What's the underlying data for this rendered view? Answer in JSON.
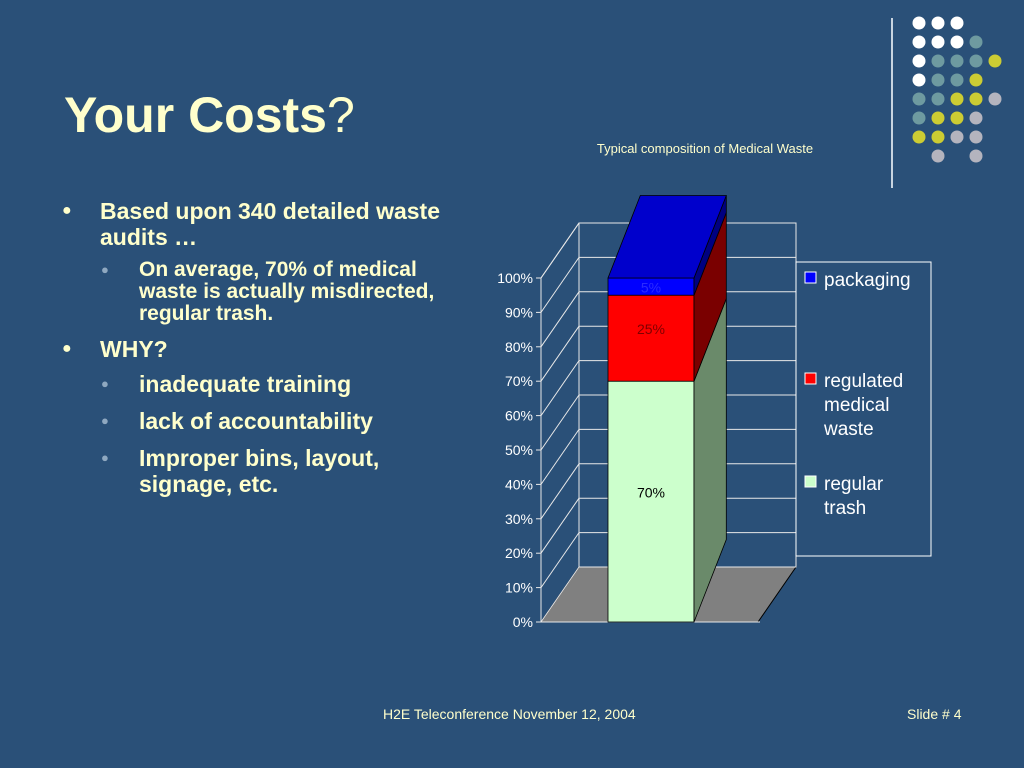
{
  "slide": {
    "title": "Your Costs",
    "title_suffix": "?",
    "footer_center": "H2E Teleconference November 12, 2004",
    "footer_right": "Slide # 4"
  },
  "bullets": {
    "b1": "Based upon 340 detailed waste audits …",
    "b1_sub": "On average, 70% of medical waste is actually misdirected, regular trash.",
    "b2": "WHY?",
    "b2_subs": [
      "inadequate training",
      "lack of accountability",
      "Improper bins, layout, signage, etc."
    ]
  },
  "chart_data": {
    "type": "bar",
    "stacked": true,
    "title": "Typical composition of Medical Waste",
    "categories": [
      ""
    ],
    "series": [
      {
        "name": "regular trash",
        "values": [
          70
        ],
        "color": "#ccffcc",
        "label": "70%"
      },
      {
        "name": "regulated medical waste",
        "values": [
          25
        ],
        "color": "#ff0000",
        "label": "25%"
      },
      {
        "name": "packaging",
        "values": [
          5
        ],
        "color": "#0000ff",
        "label": "5%"
      }
    ],
    "ylim": [
      0,
      100
    ],
    "yticks": [
      "0%",
      "10%",
      "20%",
      "30%",
      "40%",
      "50%",
      "60%",
      "70%",
      "80%",
      "90%",
      "100%"
    ],
    "legend_position": "right",
    "legend_order": [
      "packaging",
      "regulated medical waste",
      "regular trash"
    ],
    "legend_lines": {
      "packaging": [
        "packaging"
      ],
      "regulated medical waste": [
        "regulated",
        "medical",
        "waste"
      ],
      "regular trash": [
        "regular",
        "trash"
      ]
    },
    "grid": true
  },
  "colors": {
    "background": "#2a5078",
    "text": "#ffffcc",
    "dot_white": "#ffffff",
    "dot_teal": "#6e9aa0",
    "dot_yellow": "#cccc33",
    "dot_gray": "#b4b4be"
  }
}
